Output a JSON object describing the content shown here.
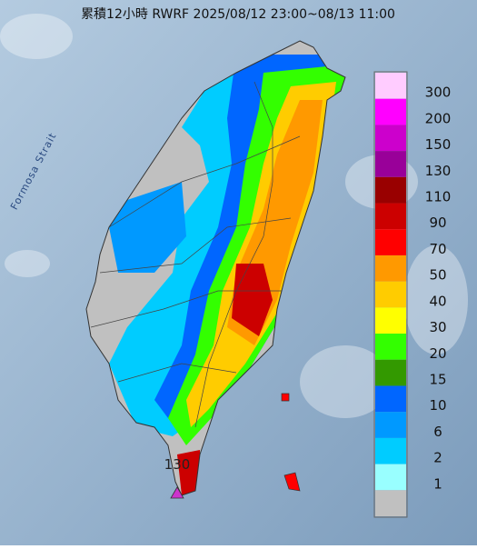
{
  "title": "累積12小時 RWRF 2025/08/12 23:00~08/13 11:00",
  "sea_label": "Formosa Strait",
  "annotation": {
    "label": "130",
    "color": "#cc33cc"
  },
  "legend": {
    "entries": [
      {
        "label": "300",
        "color": "#ffccff"
      },
      {
        "label": "200",
        "color": "#ff00ff"
      },
      {
        "label": "150",
        "color": "#cc00cc"
      },
      {
        "label": "130",
        "color": "#990099"
      },
      {
        "label": "110",
        "color": "#990000"
      },
      {
        "label": "90",
        "color": "#cc0000"
      },
      {
        "label": "70",
        "color": "#ff0000"
      },
      {
        "label": "50",
        "color": "#ff9900"
      },
      {
        "label": "40",
        "color": "#ffcc00"
      },
      {
        "label": "30",
        "color": "#ffff00"
      },
      {
        "label": "20",
        "color": "#33ff00"
      },
      {
        "label": "15",
        "color": "#339900"
      },
      {
        "label": "10",
        "color": "#0066ff"
      },
      {
        "label": "6",
        "color": "#0099ff"
      },
      {
        "label": "2",
        "color": "#00ccff"
      },
      {
        "label": "1",
        "color": "#99ffff"
      }
    ],
    "base_color": "#c0c0c0"
  }
}
